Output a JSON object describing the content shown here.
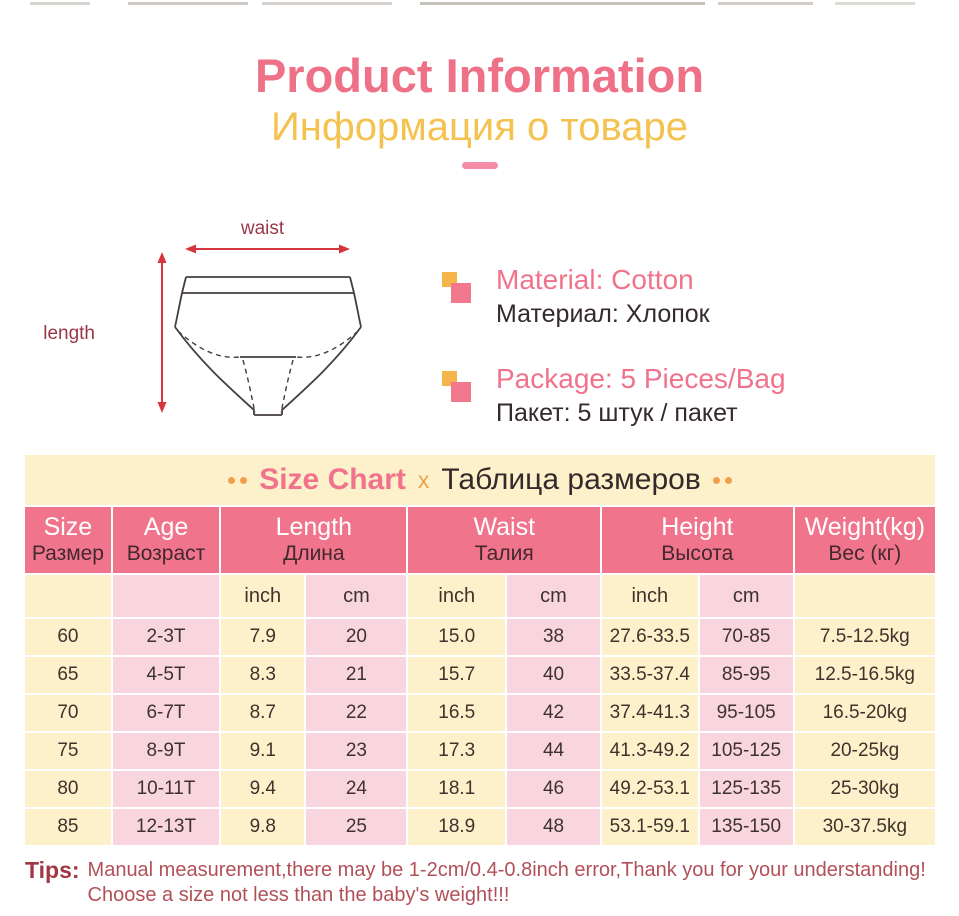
{
  "page": {
    "title": "Product Information",
    "subtitle_ru": "Информация о товаре"
  },
  "diagram": {
    "waist_label": "waist",
    "length_label": "length"
  },
  "info": [
    {
      "en": "Material: Cotton",
      "ru": "Материал: Хлопок"
    },
    {
      "en": "Package:  5 Pieces/Bag",
      "ru": "Пакет: 5 штук / пакет"
    }
  ],
  "size_chart_banner": {
    "title_en": "Size Chart",
    "separator": "x",
    "title_ru": "Таблица размеров"
  },
  "chart_data": {
    "type": "table",
    "header_groups": [
      {
        "en": "Size",
        "ru": "Размер",
        "span": 1
      },
      {
        "en": "Age",
        "ru": "Возраст",
        "span": 1
      },
      {
        "en": "Length",
        "ru": "Длина",
        "span": 2
      },
      {
        "en": "Waist",
        "ru": "Талия",
        "span": 2
      },
      {
        "en": "Height",
        "ru": "Высота",
        "span": 2
      },
      {
        "en": "Weight(kg)",
        "ru": "Вес (кг)",
        "span": 1
      }
    ],
    "subheader": [
      "",
      "",
      "inch",
      "cm",
      "inch",
      "cm",
      "inch",
      "cm",
      ""
    ],
    "rows": [
      [
        "60",
        "2-3T",
        "7.9",
        "20",
        "15.0",
        "38",
        "27.6-33.5",
        "70-85",
        "7.5-12.5kg"
      ],
      [
        "65",
        "4-5T",
        "8.3",
        "21",
        "15.7",
        "40",
        "33.5-37.4",
        "85-95",
        "12.5-16.5kg"
      ],
      [
        "70",
        "6-7T",
        "8.7",
        "22",
        "16.5",
        "42",
        "37.4-41.3",
        "95-105",
        "16.5-20kg"
      ],
      [
        "75",
        "8-9T",
        "9.1",
        "23",
        "17.3",
        "44",
        "41.3-49.2",
        "105-125",
        "20-25kg"
      ],
      [
        "80",
        "10-11T",
        "9.4",
        "24",
        "18.1",
        "46",
        "49.2-53.1",
        "125-135",
        "25-30kg"
      ],
      [
        "85",
        "12-13T",
        "9.8",
        "25",
        "18.9",
        "48",
        "53.1-59.1",
        "135-150",
        "30-37.5kg"
      ]
    ]
  },
  "tips": {
    "label": "Tips:",
    "line1": "Manual measurement,there may be 1-2cm/0.4-0.8inch error,Thank you for your understanding!",
    "line2": "Choose a size not less than the baby's weight!!!"
  },
  "colors": {
    "title_pink": "#ef7187",
    "subtitle_gold": "#f3c24f",
    "label_maroon": "#9a3747",
    "arrow_red": "#d6353f",
    "info_pink": "#f0738b",
    "dark_text": "#34292b",
    "cream_bg": "#fdf1cb",
    "header_pink_bg": "#f0748c",
    "cell_pink_bg": "#f9d5e0",
    "dot_orange": "#f0a04b",
    "tips_red": "#b25058"
  }
}
